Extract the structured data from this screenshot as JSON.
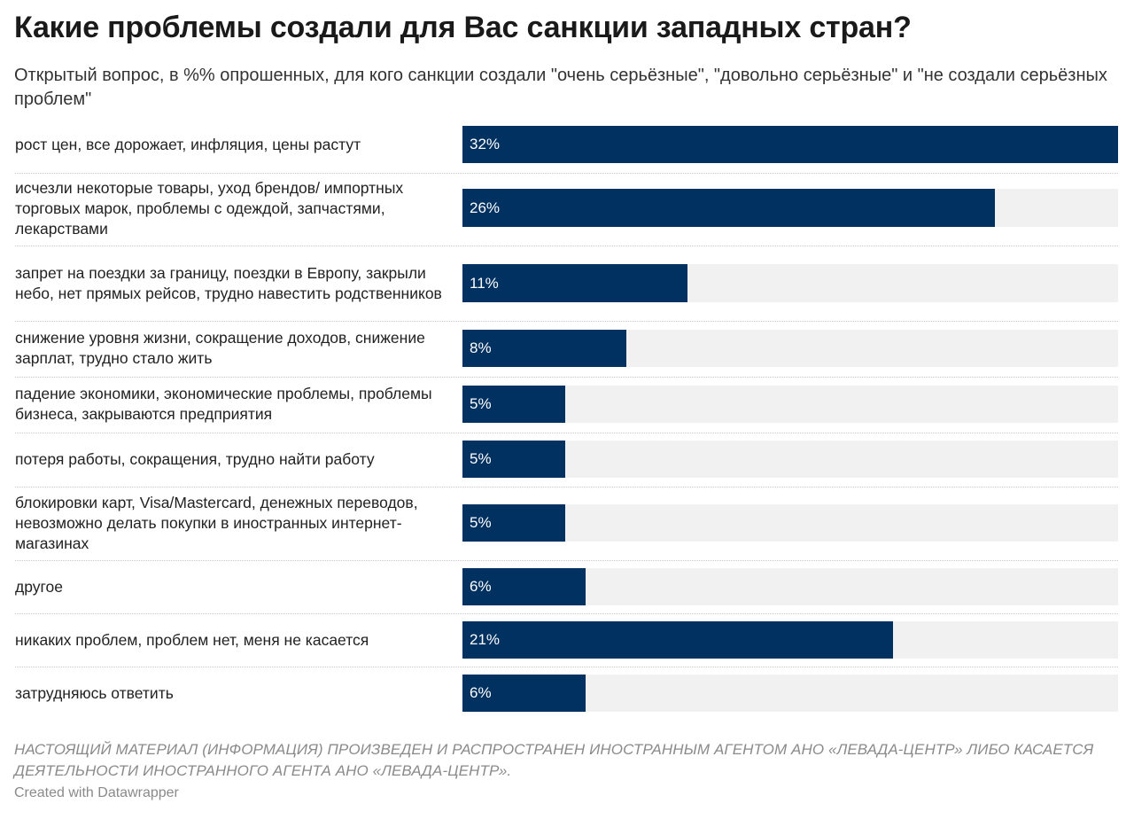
{
  "header": {
    "title": "Какие проблемы создали для Вас санкции западных стран?",
    "subtitle": "Открытый вопрос, в %% опрошенных, для кого санкции создали \"очень серьёзные\", \"довольно серьёзные\" и \"не создали серьёзных проблем\""
  },
  "footer": {
    "disclaimer": "НАСТОЯЩИЙ МАТЕРИАЛ (ИНФОРМАЦИЯ) ПРОИЗВЕДЕН И РАСПРОСТРАНЕН ИНОСТРАННЫМ АГЕНТОМ АНО «ЛЕВАДА-ЦЕНТР» ЛИБО КАСАЕТСЯ ДЕЯТЕЛЬНОСТИ ИНОСТРАННОГО АГЕНТА АНО «ЛЕВАДА-ЦЕНТР».",
    "credit": "Created with Datawrapper"
  },
  "colors": {
    "bar": "#003161",
    "bar_background": "#f1f1f1",
    "value_text": "#ffffff"
  },
  "chart_data": {
    "type": "bar",
    "orientation": "horizontal",
    "title": "Какие проблемы создали для Вас санкции западных стран?",
    "xlim": [
      0,
      32
    ],
    "value_labels": [
      "32%",
      "26%",
      "11%",
      "8%",
      "5%",
      "5%",
      "5%",
      "6%",
      "21%",
      "6%"
    ],
    "grid": false,
    "legend": "none",
    "categories": [
      "рост цен, все дорожает, инфляция, цены растут",
      "исчезли некоторые товары, уход брендов/ импортных торговых марок, проблемы с одеждой, запчастями, лекарствами",
      "запрет на поездки за границу, поездки в Европу, закрыли небо, нет прямых рейсов, трудно навестить родственников",
      "снижение уровня жизни, сокращение доходов, снижение зарплат, трудно стало жить",
      "падение экономики, экономические проблемы, проблемы бизнеса, закрываются предприятия",
      "потеря работы, сокращения, трудно найти работу",
      "блокировки карт, Visa/Mastercard, денежных переводов, невозможно делать покупки в иностранных интернет-магазинах",
      "другое",
      "никаких проблем, проблем нет, меня не касается",
      "затрудняюсь ответить"
    ],
    "values": [
      32,
      26,
      11,
      8,
      5,
      5,
      5,
      6,
      21,
      6
    ]
  }
}
